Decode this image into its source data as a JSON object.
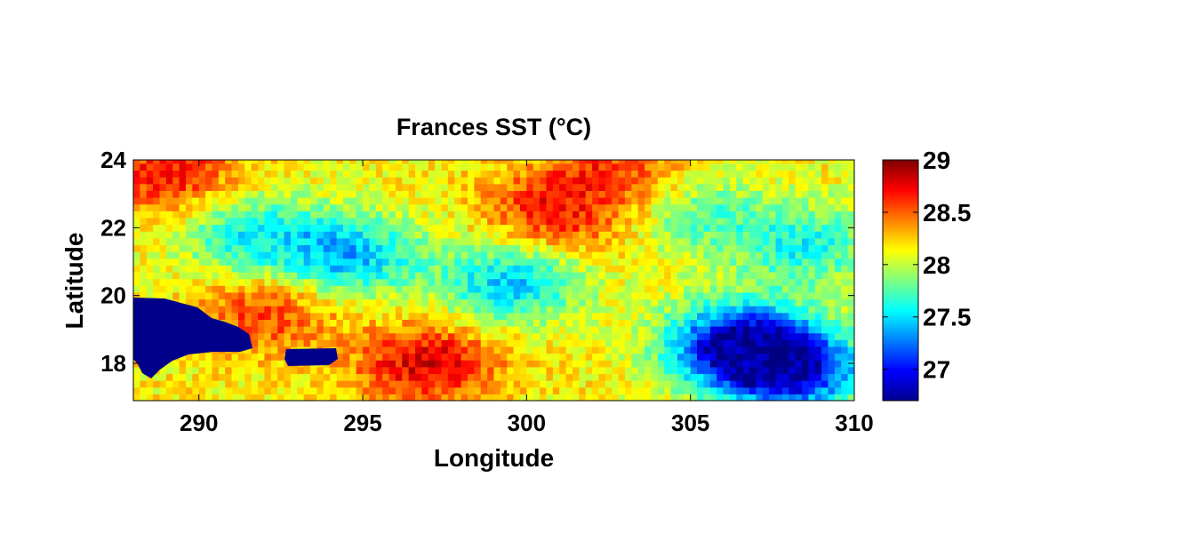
{
  "chart_data": {
    "type": "heatmap",
    "title": "Frances SST (°C)",
    "xlabel": "Longitude",
    "ylabel": "Latitude",
    "xlim": [
      288,
      310
    ],
    "ylim": [
      16.9,
      24
    ],
    "x_ticks": [
      "290",
      "295",
      "300",
      "305",
      "310"
    ],
    "y_ticks": [
      "18",
      "20",
      "22",
      "24"
    ],
    "colorbar": {
      "clim": [
        26.7,
        29
      ],
      "ticks": [
        "27",
        "27.5",
        "28",
        "28.5",
        "29"
      ],
      "colormap": "jet"
    },
    "land_color": "#00008b",
    "features": [
      {
        "lon": 301,
        "lat": 22.5,
        "sst": 28.7
      },
      {
        "lon": 292,
        "lat": 19.5,
        "sst": 28.6
      },
      {
        "lon": 297,
        "lat": 18.0,
        "sst": 28.8
      },
      {
        "lon": 289,
        "lat": 23.6,
        "sst": 28.7
      },
      {
        "lon": 303,
        "lat": 23.5,
        "sst": 28.6
      },
      {
        "lon": 291.5,
        "lat": 21.8,
        "sst": 27.6
      },
      {
        "lon": 294.5,
        "lat": 21.2,
        "sst": 27.4
      },
      {
        "lon": 299.5,
        "lat": 20.4,
        "sst": 27.45
      },
      {
        "lon": 306.5,
        "lat": 18.6,
        "sst": 26.9
      },
      {
        "lon": 308,
        "lat": 17.8,
        "sst": 26.9
      },
      {
        "lon": 305,
        "lat": 22.5,
        "sst": 27.7
      },
      {
        "lon": 308.5,
        "lat": 21.5,
        "sst": 27.6
      }
    ]
  }
}
